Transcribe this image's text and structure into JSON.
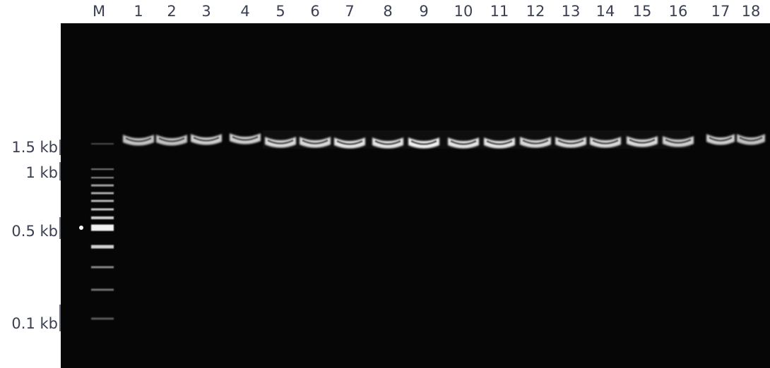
{
  "gel": {
    "lanes": [
      "M",
      "1",
      "2",
      "3",
      "4",
      "5",
      "6",
      "7",
      "8",
      "9",
      "10",
      "11",
      "12",
      "13",
      "14",
      "15",
      "16",
      "17",
      "18"
    ],
    "size_markers": [
      "1.5 kb",
      "1 kb",
      "0.5 kb",
      "0.1 kb"
    ]
  }
}
